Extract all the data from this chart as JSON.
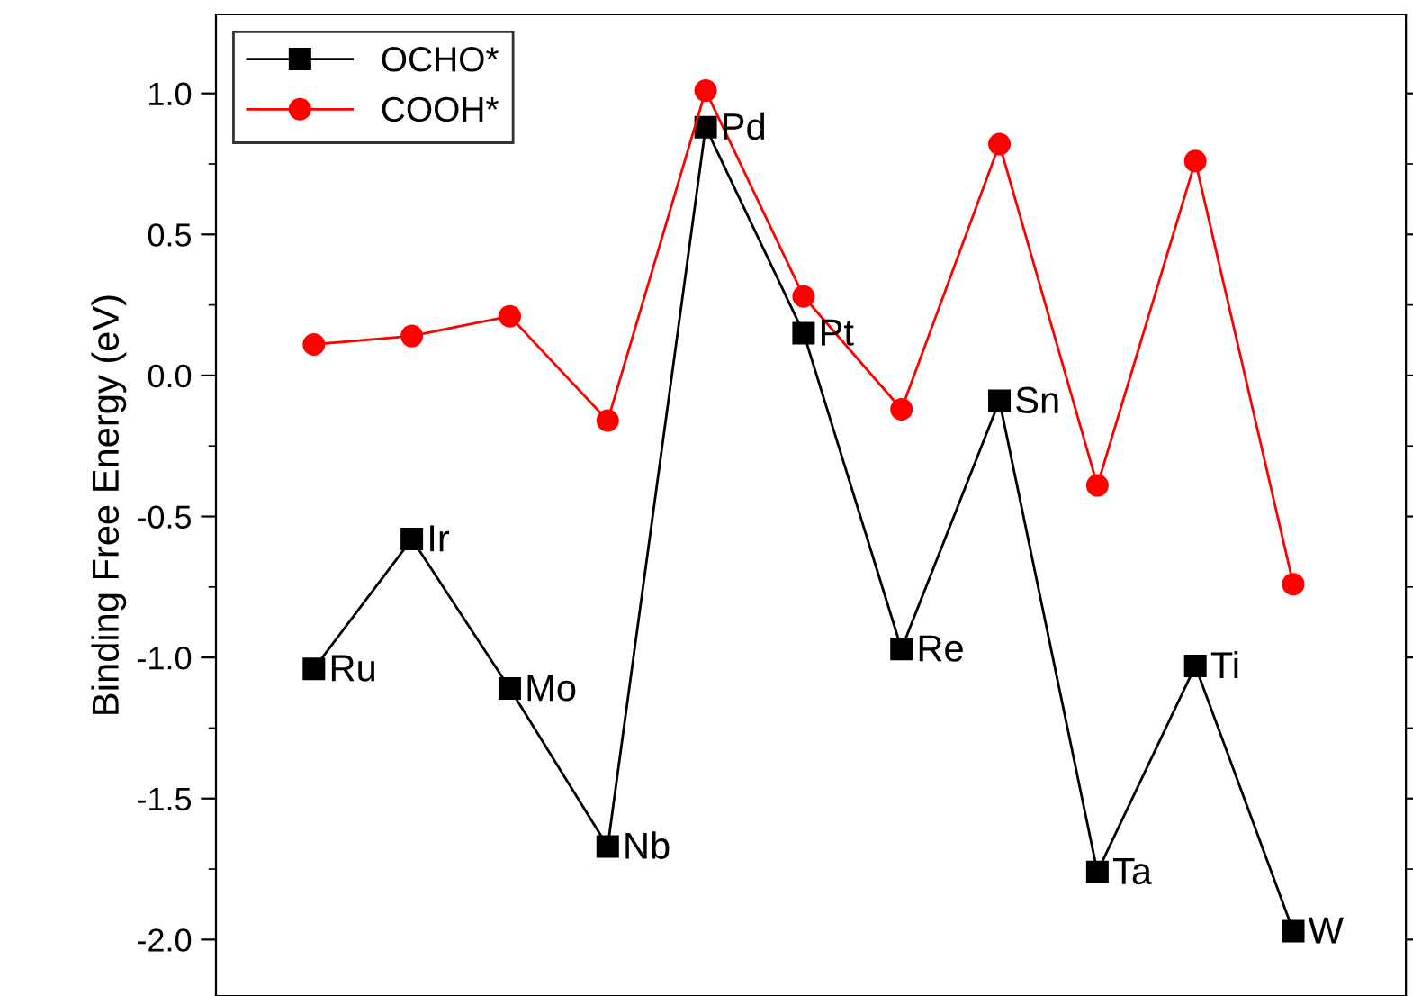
{
  "chart_data": {
    "type": "line",
    "ylabel": "Binding Free Energy (eV)",
    "categories": [
      null,
      null,
      null,
      null,
      null,
      null,
      null,
      null,
      null,
      null,
      null
    ],
    "series": [
      {
        "name": "OCHO*",
        "color": "#000000",
        "marker": "square",
        "values": [
          -1.04,
          -0.58,
          -1.11,
          -1.67,
          0.88,
          0.15,
          -0.97,
          -0.09,
          -1.76,
          -1.03,
          -1.97
        ]
      },
      {
        "name": "COOH*",
        "color": "#ff0000",
        "marker": "circle",
        "values": [
          0.11,
          0.14,
          0.21,
          -0.16,
          1.01,
          0.28,
          -0.12,
          0.82,
          -0.39,
          0.76,
          -0.74
        ]
      }
    ],
    "annotations": [
      "Ru",
      "Ir",
      "Mo",
      "Nb",
      "Pd",
      "Pt",
      "Re",
      "Sn",
      "Ta",
      "Ti",
      "W"
    ],
    "ylim": [
      -2.2,
      1.28
    ],
    "yticks": [
      {
        "value": -2.0,
        "label": "-2.0"
      },
      {
        "value": -1.5,
        "label": "-1.5"
      },
      {
        "value": -1.0,
        "label": "-1.0"
      },
      {
        "value": -0.5,
        "label": "-0.5"
      },
      {
        "value": 0.0,
        "label": "0.0"
      },
      {
        "value": 0.5,
        "label": "0.5"
      },
      {
        "value": 1.0,
        "label": "1.0"
      }
    ],
    "tick_labels": "y",
    "grid": false,
    "legend": "top left",
    "line_style": "solid"
  }
}
